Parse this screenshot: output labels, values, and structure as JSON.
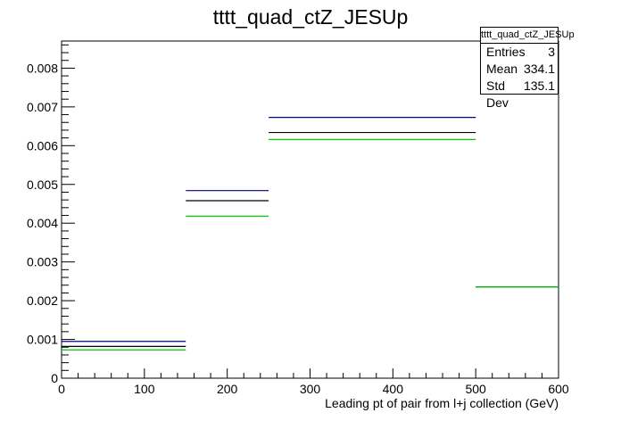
{
  "chart_data": {
    "type": "histogram",
    "title": "tttt_quad_ctZ_JESUp",
    "xlabel": "Leading pt of pair from l+j collection (GeV)",
    "ylabel": "",
    "xlim": [
      0,
      600
    ],
    "ylim": [
      0,
      0.0087
    ],
    "x_ticks": [
      "0",
      "100",
      "200",
      "300",
      "400",
      "500",
      "600"
    ],
    "y_ticks": [
      "0",
      "0.001",
      "0.002",
      "0.003",
      "0.004",
      "0.005",
      "0.006",
      "0.007",
      "0.008"
    ],
    "bin_edges": [
      0,
      150,
      250,
      500,
      600
    ],
    "series": [
      {
        "values": [
          0.00095,
          0.00484,
          0.00673,
          0.00235
        ],
        "color": "#00008b"
      },
      {
        "values": [
          0.00082,
          0.00458,
          0.00634,
          0.00235
        ],
        "color": "#000000"
      },
      {
        "values": [
          0.00073,
          0.00418,
          0.00616,
          0.00235
        ],
        "color": "#00cc00"
      }
    ],
    "stats": {
      "title": "tttt_quad_ctZ_JESUp",
      "rows": [
        {
          "label": "Entries",
          "value": "3"
        },
        {
          "label": "Mean",
          "value": "334.1"
        },
        {
          "label": "Std Dev",
          "value": "135.1"
        }
      ]
    }
  }
}
